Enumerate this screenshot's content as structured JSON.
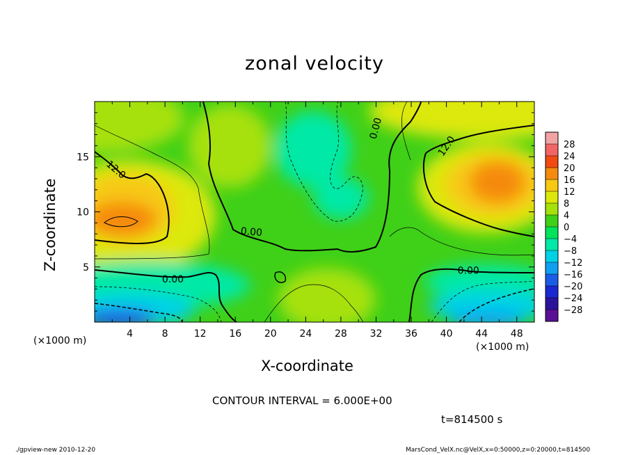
{
  "chart_data": {
    "type": "heatmap",
    "subtype": "filled-contour",
    "title": "zonal velocity",
    "xlabel": "X-coordinate",
    "ylabel": "Z-coordinate",
    "x_unit_label": "(×1000 m)",
    "xlim": [
      0,
      50
    ],
    "ylim": [
      0,
      20
    ],
    "x_ticks": [
      "4",
      "8",
      "12",
      "16",
      "20",
      "24",
      "28",
      "32",
      "36",
      "40",
      "44",
      "48"
    ],
    "y_ticks": [
      "5",
      "10",
      "15"
    ],
    "colorbar": {
      "labels": [
        "28",
        "24",
        "20",
        "16",
        "12",
        "8",
        "4",
        "0",
        "−4",
        "−8",
        "−12",
        "−16",
        "−20",
        "−24",
        "−28"
      ],
      "colors": [
        "#f2a3a3",
        "#f26565",
        "#f24a12",
        "#f58a0f",
        "#f8c812",
        "#dde80a",
        "#a6e10a",
        "#3fd018",
        "#00e35a",
        "#00e9a6",
        "#00d2e6",
        "#10a0f2",
        "#1a5ce6",
        "#1a28d2",
        "#2b149b",
        "#5a1094"
      ]
    },
    "contour_labels": [
      "12.0",
      "0.00",
      "0.00",
      "0.00",
      "12.0",
      "0.00"
    ],
    "contour_interval_text": "CONTOUR INTERVAL = 6.000E+00",
    "time_text": "t=814500 s",
    "footer_left": "./gpview-new  2010-12-20",
    "footer_right": "MarsCond_VelX.nc@VelX,x=0:50000,z=0:20000,t=814500"
  }
}
